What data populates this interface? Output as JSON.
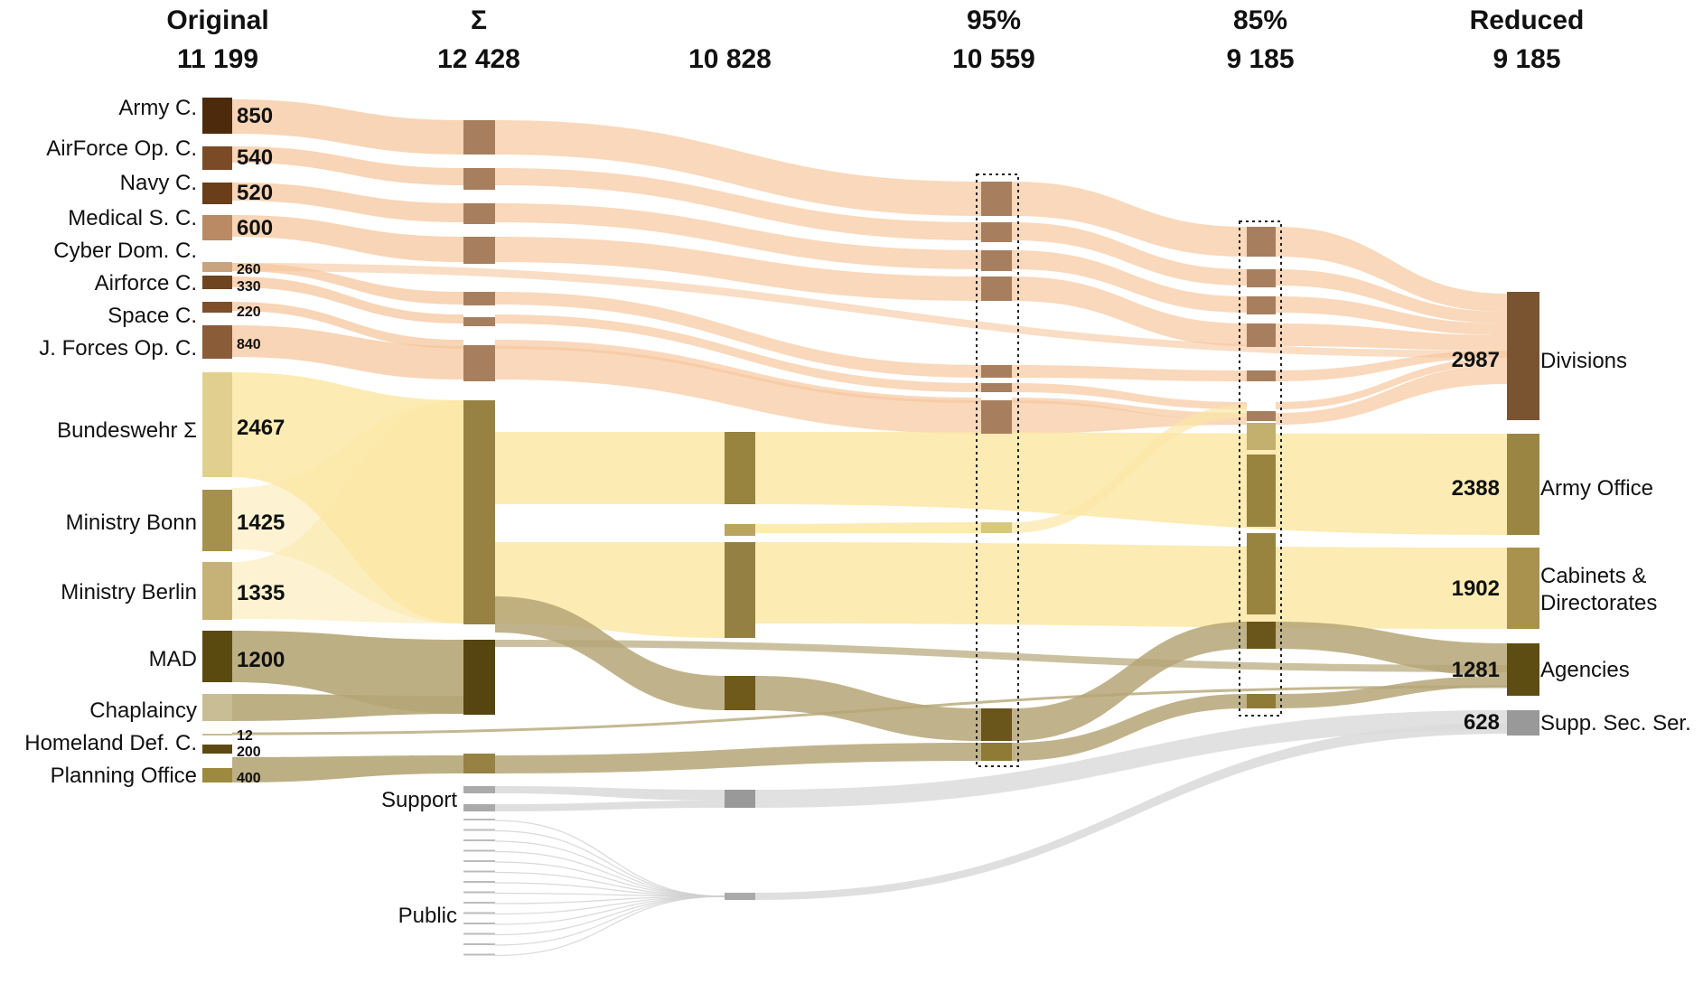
{
  "columns": [
    {
      "title": "Original",
      "total": "11 199"
    },
    {
      "title": "Σ",
      "total": "12 428"
    },
    {
      "title": "",
      "total": "10 828"
    },
    {
      "title": "95%",
      "total": "10 559"
    },
    {
      "title": "85%",
      "total": "9 185"
    },
    {
      "title": "Reduced",
      "total": "9 185"
    }
  ],
  "sources": [
    {
      "label": "Army C.",
      "value": "850",
      "color": "#4e2a0c"
    },
    {
      "label": "AirForce Op. C.",
      "value": "540",
      "color": "#7a4b26"
    },
    {
      "label": "Navy C.",
      "value": "520",
      "color": "#6a3e18"
    },
    {
      "label": "Medical S. C.",
      "value": "600",
      "color": "#b98a64"
    },
    {
      "label": "Cyber Dom. C.",
      "value": "",
      "color": "#c9a27e"
    },
    {
      "label": "Airforce C.",
      "value": "330",
      "color": "#6f4520"
    },
    {
      "label": "Space C.",
      "value": "220",
      "color": "#7e4f28"
    },
    {
      "label": "J. Forces Op. C.",
      "value": "840",
      "color": "#8b5c38"
    },
    {
      "label": "Bundeswehr Σ",
      "value": "2467",
      "color": "#e1cf8f"
    },
    {
      "label": "Ministry Bonn",
      "value": "1425",
      "color": "#a6914c"
    },
    {
      "label": "Ministry Berlin",
      "value": "1335",
      "color": "#c6b176"
    },
    {
      "label": "MAD",
      "value": "1200",
      "color": "#5a4a10"
    },
    {
      "label": "Chaplaincy",
      "value": "",
      "color": "#c9bd96"
    },
    {
      "label": "Homeland Def. C.",
      "value": "200",
      "color": "#5c4a12"
    },
    {
      "label": "Planning Office",
      "value": "400",
      "color": "#9e8a3e"
    }
  ],
  "cyber_value": "260",
  "homeland_value": "12",
  "outputs": [
    {
      "label": "Divisions",
      "value": "2987",
      "color": "#7a5430"
    },
    {
      "label": "Army Office",
      "value": "2388",
      "color": "#9a8642"
    },
    {
      "label": "Cabinets &",
      "label2": "Directorates",
      "value": "1902",
      "color": "#a8924e"
    },
    {
      "label": "Agencies",
      "value": "1281",
      "color": "#5e4d12"
    },
    {
      "label": "Supp. Sec. Ser.",
      "value": "628",
      "color": "#999999"
    }
  ],
  "sections": {
    "support": "Support",
    "public": "Public"
  },
  "colors": {
    "commands_flow": "#f6c79e",
    "ministry_flow": "#fbe7a6",
    "agency_flow": "#b5a677",
    "support_flow": "#dcdcdc",
    "sum_command_node": "#a77f5f",
    "sum_ministry_node": "#978244",
    "sum_agency_node": "#564510",
    "support_node": "#999999"
  }
}
